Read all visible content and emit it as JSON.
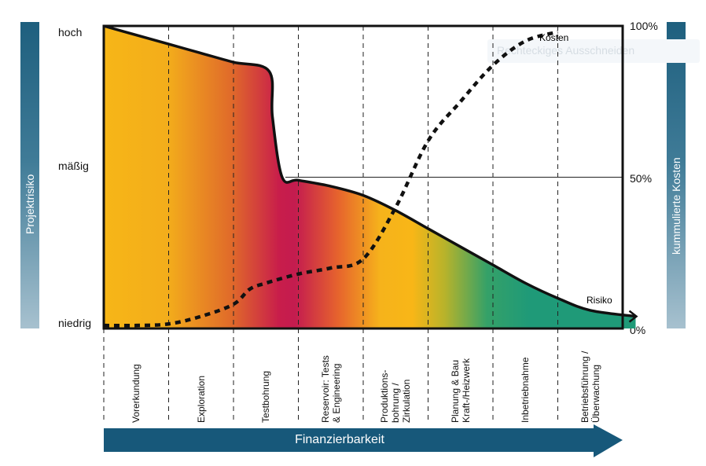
{
  "chart_data": {
    "type": "line",
    "left_axis": {
      "title": "Projektrisiko",
      "levels": [
        "hoch",
        "mäßig",
        "niedrig"
      ]
    },
    "right_axis": {
      "title": "kummulierte Kosten",
      "ticks": [
        "100%",
        "50%",
        "0%"
      ]
    },
    "x_axis": {
      "title": "Finanzierbarkeit"
    },
    "phases": [
      "Vorerkundung",
      "Exploration",
      "Testbohrung",
      "Reservoir: Tests\n& Engineering",
      "Produktions-\nbohrung /\nZirkulation",
      "Planung & Bau\nKraft-/Heizwerk",
      "Inbetriebnahme",
      "Betriebsführung /\nÜberwachung"
    ],
    "series": [
      {
        "name": "Risiko",
        "style": "solid",
        "points": [
          [
            0,
            100
          ],
          [
            0.5,
            97
          ],
          [
            1,
            94
          ],
          [
            1.5,
            91
          ],
          [
            2,
            88
          ],
          [
            2.55,
            85
          ],
          [
            2.6,
            70
          ],
          [
            2.75,
            50
          ],
          [
            3,
            49
          ],
          [
            3.5,
            47
          ],
          [
            4,
            44
          ],
          [
            4.5,
            39
          ],
          [
            5,
            33
          ],
          [
            5.5,
            27
          ],
          [
            6,
            21
          ],
          [
            6.5,
            15
          ],
          [
            7,
            10
          ],
          [
            7.5,
            6
          ],
          [
            8.2,
            4
          ]
        ]
      },
      {
        "name": "Kosten",
        "style": "dotted",
        "points": [
          [
            0,
            1
          ],
          [
            0.5,
            1
          ],
          [
            1,
            1.5
          ],
          [
            1.5,
            4
          ],
          [
            2,
            8
          ],
          [
            2.25,
            13
          ],
          [
            2.5,
            15
          ],
          [
            3,
            18
          ],
          [
            3.5,
            20
          ],
          [
            4,
            23
          ],
          [
            4.5,
            40
          ],
          [
            5,
            62
          ],
          [
            5.5,
            75
          ],
          [
            6,
            87
          ],
          [
            6.5,
            95
          ],
          [
            7,
            98
          ]
        ]
      }
    ],
    "reference_line": {
      "at_percent": 50
    },
    "ylim": [
      0,
      100
    ],
    "grid": "dashed vertical phase separators"
  },
  "ghost_text": "Rechteckiges Ausschneiden",
  "colors": {
    "bar": "#1e5f7e",
    "arrow": "#17587a"
  }
}
